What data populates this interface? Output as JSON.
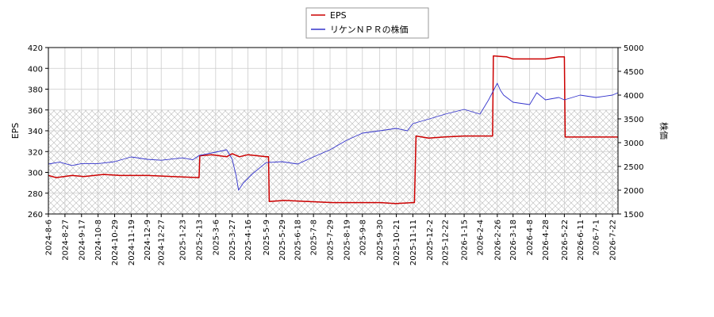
{
  "chart_data": {
    "type": "line",
    "legend": {
      "placement": "top-center",
      "entries": [
        {
          "label": "EPS",
          "color": "#cc0000"
        },
        {
          "label": "リケンＮＰＲの株価",
          "color": "#3333cc"
        }
      ]
    },
    "left_axis": {
      "title": "EPS",
      "min": 260,
      "max": 420,
      "ticks": [
        "260",
        "280",
        "300",
        "320",
        "340",
        "360",
        "380",
        "400",
        "420"
      ]
    },
    "right_axis": {
      "title": "株価",
      "min": 1500,
      "max": 5000,
      "ticks": [
        "1500",
        "2000",
        "2500",
        "3000",
        "3500",
        "4000",
        "4500",
        "5000"
      ]
    },
    "x_axis": {
      "start": "2024-08-06",
      "end": "2026-07-29",
      "ticks": [
        "2024-8-6",
        "2024-8-27",
        "2024-9-17",
        "2024-10-8",
        "2024-10-29",
        "2024-11-19",
        "2024-12-9",
        "2024-12-27",
        "2025-1-23",
        "2025-2-13",
        "2025-3-6",
        "2025-3-27",
        "2025-4-16",
        "2025-5-9",
        "2025-5-29",
        "2025-6-18",
        "2025-7-8",
        "2025-7-29",
        "2025-8-19",
        "2025-9-8",
        "2025-9-30",
        "2025-10-21",
        "2025-11-11",
        "2025-12-2",
        "2025-12-22",
        "2026-1-15",
        "2026-2-4",
        "2026-2-26",
        "2026-3-18",
        "2026-4-8",
        "2026-4-28",
        "2026-5-22",
        "2026-6-11",
        "2026-7-1",
        "2026-7-22"
      ]
    },
    "grid": true,
    "shaded_band_left_axis": [
      260,
      360
    ],
    "series": [
      {
        "name": "EPS",
        "axis": "left",
        "color": "#cc0000",
        "points": [
          [
            "2024-08-06",
            297
          ],
          [
            "2024-08-16",
            295
          ],
          [
            "2024-09-05",
            297
          ],
          [
            "2024-09-20",
            296
          ],
          [
            "2024-10-15",
            298
          ],
          [
            "2024-11-05",
            297
          ],
          [
            "2024-12-10",
            297
          ],
          [
            "2025-01-10",
            296
          ],
          [
            "2025-02-13",
            295
          ],
          [
            "2025-02-14",
            316
          ],
          [
            "2025-03-01",
            317
          ],
          [
            "2025-03-20",
            315
          ],
          [
            "2025-03-27",
            318
          ],
          [
            "2025-04-05",
            315
          ],
          [
            "2025-04-16",
            317
          ],
          [
            "2025-05-09",
            315
          ],
          [
            "2025-05-12",
            315
          ],
          [
            "2025-05-13",
            272
          ],
          [
            "2025-06-01",
            273
          ],
          [
            "2025-07-01",
            272
          ],
          [
            "2025-08-01",
            271
          ],
          [
            "2025-09-01",
            271
          ],
          [
            "2025-10-01",
            271
          ],
          [
            "2025-10-20",
            270
          ],
          [
            "2025-11-11",
            271
          ],
          [
            "2025-11-13",
            271
          ],
          [
            "2025-11-15",
            335
          ],
          [
            "2025-12-01",
            333
          ],
          [
            "2025-12-20",
            334
          ],
          [
            "2026-01-15",
            335
          ],
          [
            "2026-02-15",
            335
          ],
          [
            "2026-02-20",
            335
          ],
          [
            "2026-02-21",
            412
          ],
          [
            "2026-03-10",
            411
          ],
          [
            "2026-03-18",
            409
          ],
          [
            "2026-04-28",
            409
          ],
          [
            "2026-05-15",
            411
          ],
          [
            "2026-05-22",
            411
          ],
          [
            "2026-05-23",
            334
          ],
          [
            "2026-07-29",
            334
          ]
        ]
      },
      {
        "name": "リケンＮＰＲの株価",
        "axis": "right",
        "color": "#3333cc",
        "points": [
          [
            "2024-08-06",
            2550
          ],
          [
            "2024-08-20",
            2590
          ],
          [
            "2024-09-05",
            2520
          ],
          [
            "2024-09-17",
            2560
          ],
          [
            "2024-10-08",
            2560
          ],
          [
            "2024-10-29",
            2600
          ],
          [
            "2024-11-19",
            2700
          ],
          [
            "2024-12-09",
            2650
          ],
          [
            "2024-12-27",
            2630
          ],
          [
            "2025-01-23",
            2680
          ],
          [
            "2025-02-05",
            2640
          ],
          [
            "2025-02-13",
            2730
          ],
          [
            "2025-03-06",
            2800
          ],
          [
            "2025-03-20",
            2850
          ],
          [
            "2025-03-27",
            2650
          ],
          [
            "2025-04-01",
            2300
          ],
          [
            "2025-04-04",
            2000
          ],
          [
            "2025-04-10",
            2150
          ],
          [
            "2025-04-22",
            2350
          ],
          [
            "2025-05-09",
            2580
          ],
          [
            "2025-05-29",
            2600
          ],
          [
            "2025-06-18",
            2550
          ],
          [
            "2025-07-08",
            2700
          ],
          [
            "2025-07-29",
            2850
          ],
          [
            "2025-08-19",
            3050
          ],
          [
            "2025-09-08",
            3200
          ],
          [
            "2025-09-30",
            3250
          ],
          [
            "2025-10-21",
            3300
          ],
          [
            "2025-11-04",
            3250
          ],
          [
            "2025-11-11",
            3400
          ],
          [
            "2025-12-02",
            3500
          ],
          [
            "2025-12-22",
            3600
          ],
          [
            "2026-01-15",
            3700
          ],
          [
            "2026-02-04",
            3600
          ],
          [
            "2026-02-15",
            3900
          ],
          [
            "2026-02-26",
            4250
          ],
          [
            "2026-03-02",
            4100
          ],
          [
            "2026-03-06",
            4000
          ],
          [
            "2026-03-18",
            3850
          ],
          [
            "2026-04-08",
            3800
          ],
          [
            "2026-04-17",
            4050
          ],
          [
            "2026-04-28",
            3900
          ],
          [
            "2026-05-15",
            3950
          ],
          [
            "2026-05-22",
            3900
          ],
          [
            "2026-06-11",
            4000
          ],
          [
            "2026-07-01",
            3950
          ],
          [
            "2026-07-22",
            4000
          ],
          [
            "2026-07-29",
            4050
          ]
        ]
      }
    ]
  }
}
